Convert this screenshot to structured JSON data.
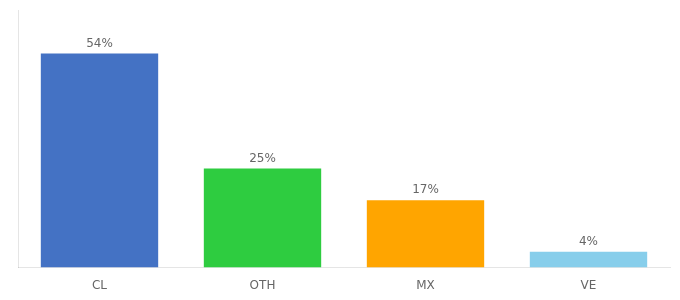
{
  "chart_data": {
    "type": "bar",
    "categories": [
      "CL",
      "OTH",
      "MX",
      "VE"
    ],
    "values": [
      54,
      25,
      17,
      4
    ],
    "value_labels": [
      "54%",
      "25%",
      "17%",
      "4%"
    ],
    "colors": [
      "#4472C4",
      "#2ECC40",
      "#FFA500",
      "#87CEEB"
    ],
    "ylim": [
      0,
      65
    ],
    "grid": false,
    "data_labels": true,
    "tick_labels": "x"
  }
}
